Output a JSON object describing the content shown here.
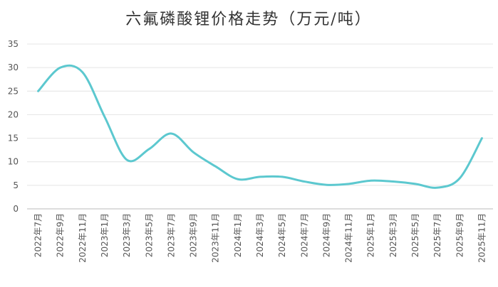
{
  "chart_data": {
    "type": "line",
    "title": "六氟磷酸锂价格走势（万元/吨）",
    "categories": [
      "2022年7月",
      "2022年9月",
      "2022年11月",
      "2023年1月",
      "2023年3月",
      "2023年5月",
      "2023年7月",
      "2023年9月",
      "2023年11月",
      "2024年1月",
      "2024年3月",
      "2024年5月",
      "2024年7月",
      "2024年9月",
      "2024年11月",
      "2025年1月",
      "2025年3月",
      "2025年5月",
      "2025年7月",
      "2025年9月",
      "2025年11月"
    ],
    "series": [
      {
        "color": "#5cc8cf",
        "values": [
          25,
          30,
          29,
          19.5,
          10.4,
          12.7,
          16,
          12,
          9,
          6.3,
          6.8,
          6.8,
          5.8,
          5.1,
          5.3,
          6,
          5.8,
          5.3,
          4.5,
          6.5,
          15
        ]
      }
    ],
    "ylim": [
      0,
      35
    ],
    "yticks": [
      0,
      5,
      10,
      15,
      20,
      25,
      30,
      35
    ],
    "grid": true
  }
}
